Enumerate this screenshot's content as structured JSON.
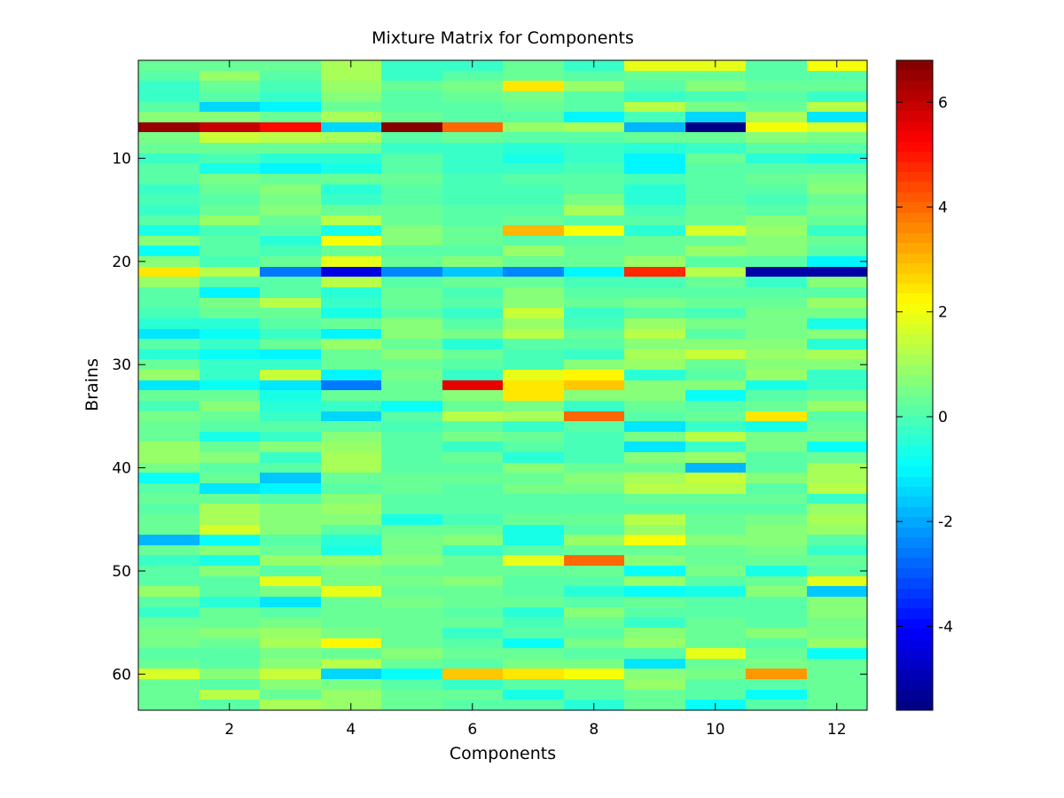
{
  "chart_data": {
    "type": "heatmap",
    "title": "Mixture Matrix for Components",
    "xlabel": "Components",
    "ylabel": "Brains",
    "colormap": "jet",
    "n_rows": 63,
    "n_cols": 12,
    "x_ticks": [
      2,
      4,
      6,
      8,
      10,
      12
    ],
    "y_ticks": [
      10,
      20,
      30,
      40,
      50,
      60
    ],
    "colorbar": {
      "range": [
        -5.6,
        6.8
      ],
      "ticks": [
        -4,
        -2,
        0,
        2,
        4,
        6
      ]
    },
    "values": [
      [
        0.3,
        0.3,
        0.3,
        1.0,
        -0.2,
        -0.2,
        0.3,
        -0.2,
        1.8,
        1.9,
        0.1,
        2.0
      ],
      [
        0.2,
        0.8,
        0.2,
        1.0,
        -0.2,
        0.2,
        0.3,
        0.1,
        0.3,
        0.3,
        0.1,
        0.2
      ],
      [
        -0.2,
        0.4,
        0.0,
        0.8,
        0.3,
        0.5,
        2.5,
        0.8,
        0.2,
        0.6,
        0.3,
        0.3
      ],
      [
        -0.2,
        0.2,
        -0.3,
        0.6,
        0.1,
        0.3,
        0.5,
        0.2,
        -0.2,
        0.0,
        0.1,
        -0.3
      ],
      [
        0.1,
        -1.4,
        -1.0,
        0.4,
        0.2,
        0.2,
        0.3,
        0.2,
        1.2,
        0.5,
        0.3,
        1.2
      ],
      [
        0.6,
        0.6,
        0.4,
        1.1,
        0.3,
        0.2,
        0.2,
        -1.0,
        0.0,
        -1.5,
        1.0,
        -1.3
      ],
      [
        6.6,
        6.0,
        5.2,
        -1.4,
        6.8,
        4.0,
        0.9,
        1.0,
        -1.8,
        -5.6,
        2.0,
        1.7
      ],
      [
        0.5,
        1.5,
        1.2,
        1.0,
        0.2,
        0.3,
        0.2,
        0.2,
        0.3,
        0.4,
        0.6,
        0.5
      ],
      [
        0.3,
        0.3,
        0.3,
        0.3,
        -0.2,
        -0.2,
        -0.4,
        -0.3,
        -0.5,
        -0.2,
        0.2,
        0.2
      ],
      [
        -0.2,
        0.0,
        -0.4,
        -0.4,
        0.1,
        -0.2,
        -0.7,
        -0.2,
        -1.0,
        0.3,
        -0.5,
        -0.6
      ],
      [
        0.1,
        -0.6,
        -1.0,
        -0.6,
        0.2,
        -0.3,
        -0.2,
        -0.1,
        -1.0,
        0.1,
        0.2,
        0.2
      ],
      [
        0.2,
        0.5,
        0.4,
        0.3,
        0.3,
        -0.1,
        0.2,
        0.2,
        -0.1,
        0.1,
        0.4,
        0.5
      ],
      [
        -0.3,
        0.3,
        0.6,
        -0.4,
        0.1,
        -0.1,
        0.0,
        0.2,
        -0.4,
        0.2,
        0.1,
        0.6
      ],
      [
        -0.1,
        0.1,
        0.5,
        -0.2,
        0.2,
        -0.1,
        0.0,
        0.5,
        -0.4,
        0.1,
        0.0,
        0.4
      ],
      [
        -0.2,
        0.3,
        0.6,
        0.4,
        0.3,
        0.2,
        0.2,
        1.0,
        -0.1,
        0.4,
        0.1,
        0.5
      ],
      [
        0.2,
        0.8,
        0.4,
        1.2,
        0.3,
        0.2,
        0.4,
        0.1,
        0.2,
        0.3,
        0.6,
        0.3
      ],
      [
        -0.6,
        -0.1,
        0.2,
        -0.6,
        0.7,
        0.4,
        3.0,
        2.0,
        -0.4,
        1.6,
        0.8,
        -0.3
      ],
      [
        0.6,
        0.2,
        -0.5,
        2.0,
        0.7,
        0.3,
        0.1,
        0.1,
        0.3,
        0.3,
        0.7,
        0.3
      ],
      [
        -0.9,
        0.2,
        0.0,
        0.3,
        0.1,
        0.2,
        0.9,
        0.3,
        0.4,
        0.8,
        0.7,
        0.1
      ],
      [
        0.6,
        -0.1,
        0.3,
        1.9,
        0.3,
        0.6,
        0.4,
        0.4,
        0.9,
        0.2,
        0.1,
        -1.1
      ],
      [
        2.5,
        1.2,
        -2.6,
        -4.3,
        -2.5,
        -1.7,
        -2.4,
        -1.1,
        4.7,
        1.2,
        -5.2,
        -5.1
      ],
      [
        0.8,
        0.2,
        0.2,
        1.3,
        0.2,
        0.3,
        0.4,
        0.0,
        -0.1,
        0.3,
        -0.2,
        0.6
      ],
      [
        0.1,
        -1.0,
        0.2,
        -0.5,
        0.3,
        0.0,
        0.6,
        0.2,
        0.1,
        0.1,
        0.1,
        0.1
      ],
      [
        0.1,
        0.5,
        1.2,
        -0.3,
        0.4,
        0.1,
        0.7,
        0.3,
        0.5,
        0.3,
        0.3,
        0.8
      ],
      [
        0.0,
        0.3,
        0.4,
        -0.6,
        0.2,
        -0.2,
        1.5,
        -0.2,
        0.2,
        -0.1,
        0.5,
        0.5
      ],
      [
        -0.4,
        -0.5,
        0.1,
        0.4,
        0.6,
        0.2,
        0.9,
        0.0,
        0.8,
        0.5,
        0.5,
        -0.6
      ],
      [
        -1.2,
        -0.9,
        -0.3,
        -1.0,
        0.7,
        0.5,
        1.2,
        0.4,
        1.2,
        0.1,
        0.5,
        0.6
      ],
      [
        0.2,
        -0.3,
        0.3,
        0.8,
        0.4,
        -0.4,
        0.1,
        0.1,
        0.7,
        0.6,
        0.6,
        -0.4
      ],
      [
        -0.5,
        -0.8,
        -1.0,
        0.3,
        0.6,
        0.3,
        -0.1,
        -0.2,
        1.1,
        1.4,
        0.9,
        1.0
      ],
      [
        0.3,
        -0.3,
        -0.3,
        0.4,
        0.3,
        0.1,
        -0.1,
        0.6,
        0.8,
        0.3,
        0.6,
        0.6
      ],
      [
        0.8,
        -0.3,
        1.5,
        -1.0,
        0.5,
        -0.2,
        1.8,
        2.2,
        -0.4,
        0.2,
        0.8,
        -0.3
      ],
      [
        -1.3,
        -0.8,
        -1.3,
        -2.6,
        0.4,
        5.5,
        2.4,
        2.8,
        0.6,
        0.7,
        -0.7,
        -0.3
      ],
      [
        0.3,
        0.3,
        -0.6,
        0.3,
        0.3,
        0.6,
        2.5,
        0.6,
        0.7,
        -0.8,
        0.2,
        0.4
      ],
      [
        -0.1,
        0.7,
        -0.4,
        -0.2,
        -0.8,
        0.4,
        0.5,
        -0.2,
        0.4,
        0.2,
        0.3,
        0.9
      ],
      [
        0.5,
        0.4,
        -0.2,
        -1.4,
        0.2,
        1.2,
        1.1,
        3.9,
        0.1,
        0.3,
        2.5,
        0.2
      ],
      [
        0.3,
        0.1,
        0.1,
        0.2,
        0.0,
        0.1,
        -0.2,
        0.1,
        -1.3,
        -0.3,
        -0.7,
        0.4
      ],
      [
        0.4,
        -0.6,
        -0.2,
        0.6,
        0.1,
        0.5,
        0.3,
        0.0,
        0.5,
        1.2,
        0.5,
        0.5
      ],
      [
        0.8,
        0.3,
        0.6,
        0.9,
        0.1,
        -0.3,
        0.2,
        -0.1,
        -1.3,
        -0.3,
        0.5,
        -0.8
      ],
      [
        0.9,
        0.6,
        -0.2,
        1.0,
        0.2,
        0.3,
        -0.4,
        -0.1,
        0.6,
        0.9,
        0.2,
        0.4
      ],
      [
        0.5,
        0.2,
        0.2,
        1.0,
        0.2,
        0.2,
        0.6,
        0.3,
        0.4,
        -1.8,
        0.1,
        1.0
      ],
      [
        -0.8,
        0.3,
        -1.6,
        0.4,
        0.3,
        0.3,
        0.4,
        0.6,
        1.0,
        1.4,
        0.6,
        1.0
      ],
      [
        0.2,
        -1.2,
        -1.0,
        0.1,
        0.3,
        0.1,
        0.5,
        0.5,
        1.2,
        1.2,
        0.2,
        1.2
      ],
      [
        0.3,
        0.4,
        0.2,
        0.6,
        0.1,
        0.1,
        0.1,
        0.2,
        0.3,
        0.3,
        0.4,
        -0.3
      ],
      [
        0.1,
        1.0,
        0.7,
        0.8,
        0.2,
        0.2,
        0.1,
        0.1,
        0.2,
        0.2,
        0.1,
        0.8
      ],
      [
        0.4,
        1.0,
        0.6,
        0.6,
        -0.6,
        0.0,
        0.3,
        0.3,
        1.2,
        0.4,
        0.5,
        1.1
      ],
      [
        0.4,
        1.6,
        0.6,
        0.2,
        0.3,
        0.3,
        -0.6,
        0.1,
        0.8,
        0.4,
        0.6,
        0.9
      ],
      [
        -1.8,
        -0.8,
        0.2,
        -0.4,
        0.5,
        0.6,
        -0.7,
        0.8,
        2.0,
        0.7,
        0.7,
        0.2
      ],
      [
        0.4,
        0.6,
        0.4,
        -0.6,
        0.5,
        -0.2,
        0.1,
        0.4,
        0.4,
        0.4,
        0.5,
        -0.3
      ],
      [
        -0.3,
        -0.6,
        0.8,
        0.8,
        0.6,
        0.3,
        1.8,
        3.9,
        0.6,
        0.4,
        0.3,
        0.4
      ],
      [
        0.2,
        0.7,
        0.2,
        0.5,
        0.3,
        0.3,
        0.3,
        0.3,
        -0.8,
        0.5,
        -0.6,
        0.1
      ],
      [
        0.1,
        0.1,
        1.8,
        0.5,
        0.5,
        0.6,
        0.2,
        0.1,
        0.8,
        0.2,
        0.4,
        1.9
      ],
      [
        0.8,
        0.2,
        0.5,
        1.8,
        0.4,
        0.4,
        0.1,
        -0.5,
        -0.8,
        -0.6,
        0.6,
        -1.7
      ],
      [
        0.2,
        -0.5,
        -1.3,
        0.3,
        0.5,
        0.4,
        0.3,
        0.1,
        0.3,
        0.2,
        0.2,
        0.6
      ],
      [
        -0.2,
        0.3,
        0.2,
        0.4,
        0.3,
        0.2,
        -0.5,
        0.6,
        0.2,
        0.1,
        0.1,
        0.6
      ],
      [
        0.3,
        0.4,
        0.5,
        0.3,
        0.4,
        0.3,
        -0.1,
        0.3,
        -0.2,
        0.4,
        0.2,
        0.5
      ],
      [
        0.5,
        0.6,
        0.8,
        0.5,
        0.3,
        -0.2,
        0.1,
        0.2,
        0.6,
        0.4,
        0.7,
        0.5
      ],
      [
        0.5,
        0.4,
        1.0,
        2.2,
        0.4,
        0.2,
        -0.8,
        0.5,
        0.8,
        0.4,
        0.1,
        0.9
      ],
      [
        0.2,
        0.1,
        0.5,
        0.4,
        0.6,
        0.3,
        0.3,
        0.2,
        0.1,
        1.8,
        0.4,
        -0.9
      ],
      [
        0.3,
        0.1,
        0.6,
        1.2,
        0.3,
        0.1,
        0.5,
        0.5,
        -1.2,
        0.3,
        0.5,
        0.3
      ],
      [
        1.7,
        0.7,
        1.5,
        -1.5,
        -0.9,
        2.9,
        2.5,
        2.1,
        0.6,
        0.5,
        3.4,
        0.4
      ],
      [
        0.3,
        0.1,
        0.6,
        0.5,
        0.2,
        -0.3,
        0.1,
        0.2,
        0.8,
        0.2,
        0.2,
        0.4
      ],
      [
        0.3,
        1.2,
        0.4,
        0.9,
        0.3,
        0.3,
        -0.6,
        0.1,
        0.3,
        0.2,
        -0.8,
        0.3
      ],
      [
        0.4,
        0.2,
        1.0,
        0.8,
        0.4,
        0.2,
        0.1,
        -0.4,
        0.3,
        -0.8,
        0.2,
        0.4
      ]
    ]
  }
}
